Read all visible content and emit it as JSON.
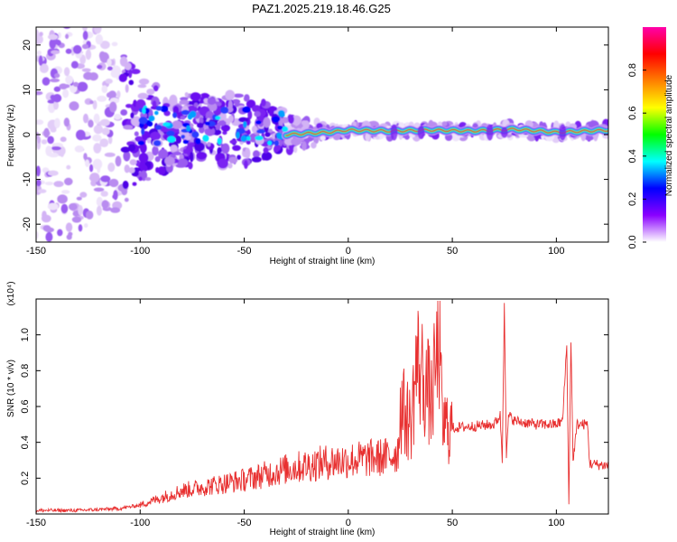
{
  "title": "PAZ1.2025.219.18.46.G25",
  "chart_data": [
    {
      "type": "heatmap",
      "xlabel": "Height of straight line (km)",
      "ylabel": "Frequency (Hz)",
      "xlim": [
        -150,
        125
      ],
      "ylim": [
        -24,
        24
      ],
      "xticks": [
        -150,
        -100,
        -50,
        0,
        50,
        100
      ],
      "yticks": [
        -20,
        -10,
        0,
        10,
        20
      ],
      "colorbar": {
        "label": "Normalized spectral amplitude",
        "range": [
          0,
          1
        ],
        "ticks": [
          "0.0",
          "0.2",
          "0.4",
          "0.6",
          "0.8"
        ],
        "colors": [
          "#ffffff",
          "#8a00ff",
          "#0000ff",
          "#00ffff",
          "#00ff00",
          "#ffff00",
          "#ff7f00",
          "#ff0000",
          "#ff00aa"
        ]
      },
      "line_frequency_hz": [
        {
          "x": -30,
          "f": 0.0
        },
        {
          "x": -10,
          "f": 0.5
        },
        {
          "x": 0,
          "f": 1.0
        },
        {
          "x": 20,
          "f": 0.8
        },
        {
          "x": 40,
          "f": 1.0
        },
        {
          "x": 60,
          "f": 0.8
        },
        {
          "x": 80,
          "f": 1.2
        },
        {
          "x": 100,
          "f": 0.5
        },
        {
          "x": 125,
          "f": 1.0
        }
      ],
      "scatter_envelope_hz": [
        {
          "x": -150,
          "spread": 24
        },
        {
          "x": -120,
          "spread": 24
        },
        {
          "x": -100,
          "spread": 12
        },
        {
          "x": -80,
          "spread": 8
        },
        {
          "x": -50,
          "spread": 8
        },
        {
          "x": -30,
          "spread": 4
        },
        {
          "x": 0,
          "spread": 1.5
        },
        {
          "x": 125,
          "spread": 1.5
        }
      ]
    },
    {
      "type": "line",
      "xlabel": "Height of straight line (km)",
      "ylabel": "SNR (10 * v/v)",
      "yscale_label": "(x10⁴)",
      "xlim": [
        -150,
        125
      ],
      "ylim": [
        0,
        1.2
      ],
      "xticks": [
        -150,
        -100,
        -50,
        0,
        50,
        100
      ],
      "yticks": [
        "0.2",
        "0.4",
        "0.6",
        "0.8",
        "1.0"
      ],
      "color": "#e83030",
      "series": [
        {
          "points": [
            [
              -150,
              0.02
            ],
            [
              -130,
              0.02
            ],
            [
              -110,
              0.03
            ],
            [
              -100,
              0.05
            ],
            [
              -90,
              0.09
            ],
            [
              -80,
              0.13
            ],
            [
              -70,
              0.15
            ],
            [
              -60,
              0.17
            ],
            [
              -50,
              0.19
            ],
            [
              -40,
              0.22
            ],
            [
              -30,
              0.25
            ],
            [
              -20,
              0.27
            ],
            [
              -10,
              0.29
            ],
            [
              0,
              0.3
            ],
            [
              10,
              0.31
            ],
            [
              20,
              0.32
            ],
            [
              24,
              0.35
            ],
            [
              25,
              0.6
            ],
            [
              30,
              0.5
            ],
            [
              33,
              0.85
            ],
            [
              38,
              0.7
            ],
            [
              40,
              0.62
            ],
            [
              44,
              1.0
            ],
            [
              45,
              0.5
            ],
            [
              50,
              0.48
            ],
            [
              60,
              0.49
            ],
            [
              70,
              0.5
            ],
            [
              73,
              0.55
            ],
            [
              74,
              0.3
            ],
            [
              75,
              1.2
            ],
            [
              76,
              0.3
            ],
            [
              77,
              0.55
            ],
            [
              80,
              0.52
            ],
            [
              90,
              0.5
            ],
            [
              100,
              0.5
            ],
            [
              103,
              0.52
            ],
            [
              105,
              0.95
            ],
            [
              106,
              0.05
            ],
            [
              107,
              0.98
            ],
            [
              108,
              0.3
            ],
            [
              110,
              0.5
            ],
            [
              115,
              0.5
            ],
            [
              116,
              0.28
            ],
            [
              125,
              0.27
            ]
          ]
        }
      ]
    }
  ]
}
